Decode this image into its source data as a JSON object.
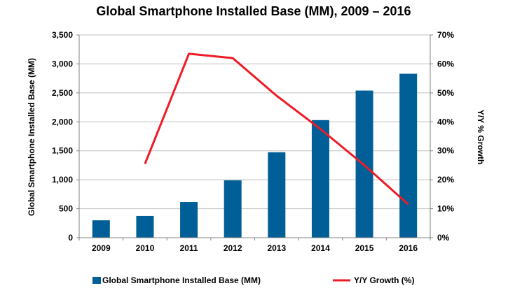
{
  "chart_data": {
    "type": "bar+line",
    "title": "Global Smartphone Installed Base (MM), 2009 – 2016",
    "categories": [
      "2009",
      "2010",
      "2011",
      "2012",
      "2013",
      "2014",
      "2015",
      "2016"
    ],
    "series": [
      {
        "name": "Global Smartphone Installed Base (MM)",
        "type": "bar",
        "axis": "left",
        "color": "#005f96",
        "values": [
          300,
          375,
          615,
          990,
          1475,
          2030,
          2540,
          2830
        ]
      },
      {
        "name": "Y/Y Growth (%)",
        "type": "line",
        "axis": "right",
        "color": "#ee1c25",
        "values": [
          null,
          25.5,
          63.5,
          62,
          49,
          37.5,
          25,
          11.5
        ]
      }
    ],
    "ylabel_left": "Global Smartphone Installed Base (MM)",
    "ylabel_right": "Y/Y % Growth",
    "ylim_left": [
      0,
      3500
    ],
    "ylim_right": [
      0,
      70
    ],
    "yticks_left": [
      "0",
      "500",
      "1,000",
      "1,500",
      "2,000",
      "2,500",
      "3,000",
      "3,500"
    ],
    "yticks_right": [
      "0%",
      "10%",
      "20%",
      "30%",
      "40%",
      "50%",
      "60%",
      "70%"
    ],
    "grid": true,
    "legend_position": "bottom"
  }
}
